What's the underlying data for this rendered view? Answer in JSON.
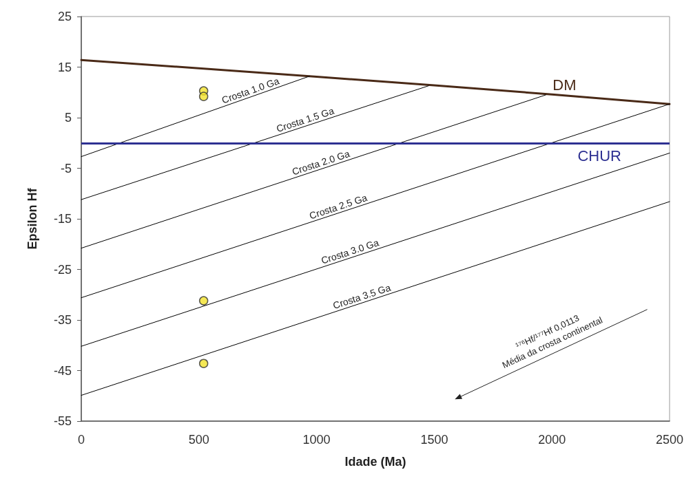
{
  "chart_data": {
    "type": "line",
    "xlabel": "Idade (Ma)",
    "ylabel": "Epsilon Hf",
    "xlim": [
      0,
      2500
    ],
    "xticks": [
      0,
      500,
      1000,
      1500,
      2000,
      2500
    ],
    "ylim": [
      -55,
      25
    ],
    "yticks": [
      -55,
      -45,
      -35,
      -25,
      -15,
      -5,
      5,
      15,
      25
    ],
    "grid": false,
    "legend": false,
    "series": [
      {
        "name": "DM",
        "color": "#4a2a17",
        "x": [
          0,
          1000,
          1500,
          2000,
          2500
        ],
        "values": [
          16.4,
          13.1,
          11.4,
          9.6,
          7.7
        ]
      },
      {
        "name": "Crosta 1.0 Ga",
        "color": "#000000",
        "x": [
          0,
          970
        ],
        "values": [
          -2.7,
          13.2
        ]
      },
      {
        "name": "Crosta 1.5 Ga",
        "color": "#000000",
        "x": [
          0,
          1476
        ],
        "values": [
          -11.2,
          11.3
        ]
      },
      {
        "name": "Crosta 2.0 Ga",
        "color": "#000000",
        "x": [
          0,
          1974
        ],
        "values": [
          -20.8,
          9.5
        ]
      },
      {
        "name": "Crosta 2.5 Ga",
        "color": "#000000",
        "x": [
          0,
          2500
        ],
        "values": [
          -30.6,
          7.7
        ]
      },
      {
        "name": "Crosta 3.0 Ga",
        "color": "#000000",
        "x": [
          0,
          2500
        ],
        "values": [
          -40.2,
          -2.0
        ]
      },
      {
        "name": "Crosta 3.5 Ga",
        "color": "#000000",
        "x": [
          0,
          2500
        ],
        "values": [
          -49.9,
          -11.6
        ]
      },
      {
        "type": "scatter",
        "color": "#f2e22b",
        "marker": "circle",
        "x": [
          520,
          520,
          520,
          520
        ],
        "values": [
          10.3,
          9.2,
          -31.2,
          -43.6
        ]
      }
    ],
    "ref_lines": [
      {
        "axis": "y",
        "value": 0,
        "label": "CHUR",
        "color": "#2e3192"
      }
    ],
    "annotations": [
      "¹⁷⁶Hf/¹⁷⁷Hf 0,0113",
      "Média da crosta continental"
    ]
  }
}
